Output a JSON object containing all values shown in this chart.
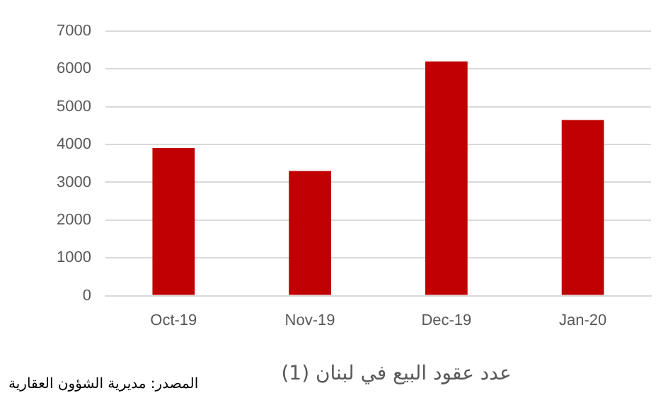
{
  "chart_data": {
    "type": "bar",
    "title": "عدد عقود البيع في لبنان (1)",
    "categories": [
      "Oct-19",
      "Nov-19",
      "Dec-19",
      "Jan-20"
    ],
    "values": [
      3910,
      3300,
      6200,
      4650
    ],
    "color": "#c00000",
    "ylim": [
      0,
      7000
    ],
    "yticks": [
      0,
      1000,
      2000,
      3000,
      4000,
      5000,
      6000,
      7000
    ],
    "grid": "y",
    "annotations": [
      "المصدر: مديرية الشؤون العقارية"
    ]
  }
}
